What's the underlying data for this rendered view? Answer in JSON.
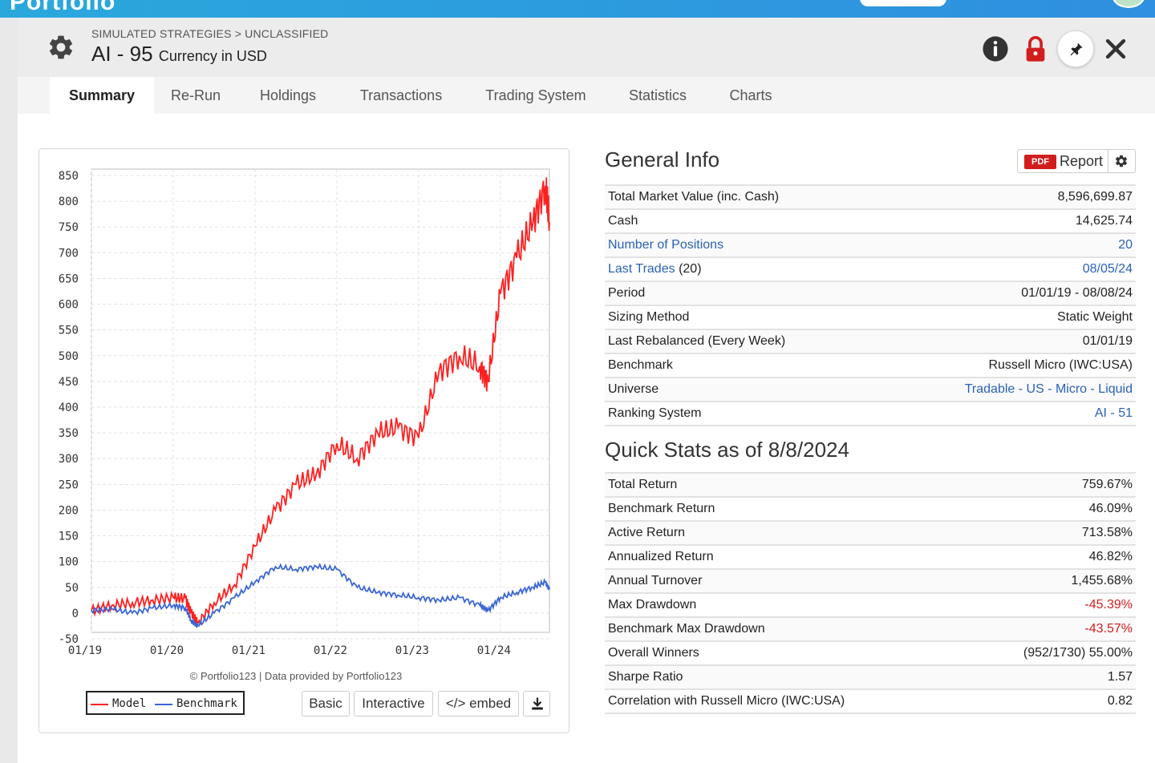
{
  "header": {
    "breadcrumb": "SIMULATED STRATEGIES > UNCLASSIFIED",
    "title": "AI - 95",
    "currency": "Currency in USD"
  },
  "tabs": [
    "Summary",
    "Re-Run",
    "Holdings",
    "Transactions",
    "Trading System",
    "Statistics",
    "Charts"
  ],
  "active_tab": "Summary",
  "colors": {
    "model": "#ff2020",
    "benchmark": "#3a66d6",
    "link": "#2a62b8",
    "negative": "#d21d1d"
  },
  "chart": {
    "credit": "© Portfolio123 | Data provided by Portfolio123",
    "legend_model": "Model",
    "legend_benchmark": "Benchmark",
    "buttons": {
      "basic": "Basic",
      "interactive": "Interactive",
      "embed": "</> embed"
    }
  },
  "chart_data": {
    "type": "line",
    "xlabel": "",
    "ylabel": "",
    "ylim": [
      -50,
      850
    ],
    "yticks": [
      -50,
      0,
      50,
      100,
      150,
      200,
      250,
      300,
      350,
      400,
      450,
      500,
      550,
      600,
      650,
      700,
      750,
      800,
      850
    ],
    "xticks": [
      "01/19",
      "01/20",
      "01/21",
      "01/22",
      "01/23",
      "01/24"
    ],
    "grid": true,
    "legend_position": "bottom-left",
    "x": [
      2019.0,
      2019.25,
      2019.5,
      2019.75,
      2020.0,
      2020.15,
      2020.22,
      2020.3,
      2020.5,
      2020.75,
      2021.0,
      2021.25,
      2021.5,
      2021.75,
      2022.0,
      2022.25,
      2022.5,
      2022.75,
      2023.0,
      2023.25,
      2023.5,
      2023.75,
      2023.85,
      2024.0,
      2024.2,
      2024.4,
      2024.55,
      2024.6
    ],
    "series": [
      {
        "name": "Model",
        "values": [
          5,
          15,
          20,
          25,
          30,
          28,
          0,
          -20,
          20,
          55,
          130,
          200,
          250,
          270,
          330,
          300,
          350,
          360,
          340,
          470,
          500,
          480,
          450,
          620,
          690,
          760,
          830,
          760
        ]
      },
      {
        "name": "Benchmark",
        "values": [
          5,
          8,
          0,
          10,
          15,
          10,
          -15,
          -25,
          0,
          30,
          60,
          90,
          85,
          90,
          85,
          50,
          40,
          35,
          30,
          25,
          30,
          15,
          5,
          30,
          40,
          50,
          60,
          46
        ]
      }
    ]
  },
  "general_info": {
    "title": "General Info",
    "report_label": "Report",
    "pdf_badge": "PDF",
    "rows": [
      {
        "label": "Total Market Value (inc. Cash)",
        "value": "8,596,699.87"
      },
      {
        "label": "Cash",
        "value": "14,625.74"
      },
      {
        "label": "Number of Positions",
        "value": "20"
      },
      {
        "label": "Last Trades",
        "label_suffix": "(20)",
        "value": "08/05/24"
      },
      {
        "label": "Period",
        "value": "01/01/19 - 08/08/24"
      },
      {
        "label": "Sizing Method",
        "value": "Static Weight"
      },
      {
        "label": "Last Rebalanced (Every Week)",
        "value": "01/01/19"
      },
      {
        "label": "Benchmark",
        "value": "Russell Micro (IWC:USA)"
      },
      {
        "label": "Universe",
        "value": "Tradable - US - Micro - Liquid"
      },
      {
        "label": "Ranking System",
        "value": "AI - 51"
      }
    ]
  },
  "quick_stats": {
    "title": "Quick Stats as of 8/8/2024",
    "rows": [
      {
        "label": "Total Return",
        "value": "759.67%"
      },
      {
        "label": "Benchmark Return",
        "value": "46.09%"
      },
      {
        "label": "Active Return",
        "value": "713.58%"
      },
      {
        "label": "Annualized Return",
        "value": "46.82%"
      },
      {
        "label": "Annual Turnover",
        "value": "1,455.68%"
      },
      {
        "label": "Max Drawdown",
        "value": "-45.39%"
      },
      {
        "label": "Benchmark Max Drawdown",
        "value": "-43.57%"
      },
      {
        "label": "Overall Winners",
        "value": "(952/1730) 55.00%"
      },
      {
        "label": "Sharpe Ratio",
        "value": "1.57"
      },
      {
        "label": "Correlation with Russell Micro (IWC:USA)",
        "value": "0.82"
      }
    ]
  }
}
